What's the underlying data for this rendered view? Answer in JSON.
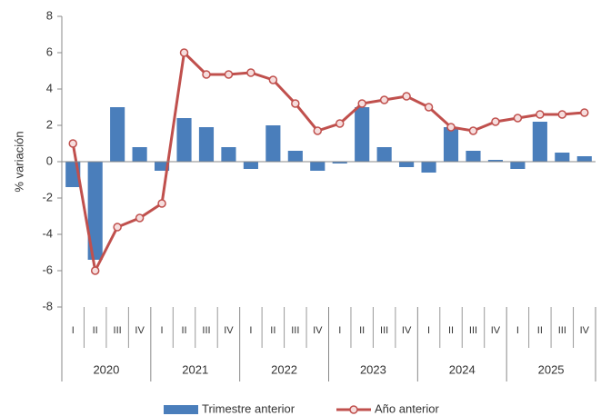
{
  "chart_data": {
    "type": "bar_line",
    "y_label": "% variación",
    "categories": [
      "I",
      "II",
      "III",
      "IV",
      "I",
      "II",
      "III",
      "IV",
      "I",
      "II",
      "III",
      "IV",
      "I",
      "II",
      "III",
      "IV",
      "I",
      "II",
      "III",
      "IV",
      "I",
      "II",
      "III",
      "IV"
    ],
    "years": [
      "2020",
      "2021",
      "2022",
      "2023",
      "2024",
      "2025"
    ],
    "series": [
      {
        "name": "Trimestre anterior",
        "type": "bar",
        "color": "#4a7ebb",
        "values": [
          -1.4,
          -5.4,
          3.0,
          0.8,
          -0.5,
          2.4,
          1.9,
          0.8,
          -0.4,
          2.0,
          0.6,
          -0.5,
          -0.1,
          3.0,
          0.8,
          -0.3,
          -0.6,
          1.9,
          0.6,
          0.1,
          -0.4,
          2.2,
          0.5,
          0.3
        ]
      },
      {
        "name": "Año anterior",
        "type": "line",
        "color": "#c0504d",
        "values": [
          1.0,
          -6.0,
          -3.6,
          -3.1,
          -2.3,
          6.0,
          4.8,
          4.8,
          4.9,
          4.5,
          3.2,
          1.7,
          2.1,
          3.2,
          3.4,
          3.6,
          3.0,
          1.9,
          1.7,
          2.2,
          2.4,
          2.6,
          2.6,
          2.7
        ]
      }
    ],
    "ylim": [
      -8,
      8
    ],
    "yticks": [
      -8,
      -6,
      -4,
      -2,
      0,
      2,
      4,
      6,
      8
    ],
    "grid": false,
    "legend": "bottom"
  }
}
